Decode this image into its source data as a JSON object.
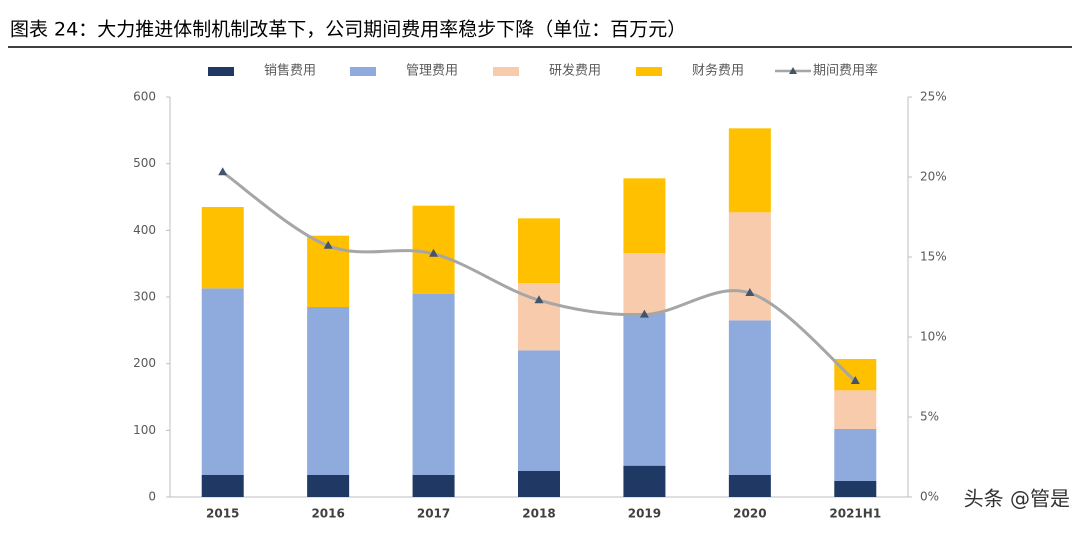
{
  "chart_data": {
    "type": "bar",
    "title": "图表 24：大力推进体制机制改革下，公司期间费用率稳步下降（单位：百万元）",
    "categories": [
      "2015",
      "2016",
      "2017",
      "2018",
      "2019",
      "2020",
      "2021H1"
    ],
    "series": [
      {
        "name": "销售费用",
        "color": "#203864",
        "values": [
          33,
          33,
          33,
          39,
          47,
          33,
          24
        ]
      },
      {
        "name": "管理费用",
        "color": "#8faadc",
        "values": [
          280,
          252,
          272,
          181,
          229,
          232,
          78
        ]
      },
      {
        "name": "研发费用",
        "color": "#f8cbad",
        "values": [
          0,
          0,
          0,
          101,
          90,
          162,
          58
        ]
      },
      {
        "name": "财务费用",
        "color": "#ffc000",
        "values": [
          122,
          107,
          132,
          97,
          112,
          126,
          47
        ]
      },
      {
        "name": "期间费用率",
        "type": "line",
        "axis": "y2",
        "color": "#a6a6a6",
        "marker_color": "#44546a",
        "values": [
          20.3,
          15.7,
          15.2,
          12.3,
          11.4,
          12.75,
          7.25
        ]
      }
    ],
    "ylim": [
      0,
      600
    ],
    "yticks": [
      0,
      100,
      200,
      300,
      400,
      500,
      600
    ],
    "y2lim": [
      0,
      25
    ],
    "y2ticks": [
      {
        "value": 0,
        "label": "0%"
      },
      {
        "value": 5,
        "label": "5%"
      },
      {
        "value": 10,
        "label": "10%"
      },
      {
        "value": 15,
        "label": "15%"
      },
      {
        "value": 20,
        "label": "20%"
      },
      {
        "value": 25,
        "label": "25%"
      }
    ],
    "grid": false,
    "watermark": "头条 @管是"
  }
}
